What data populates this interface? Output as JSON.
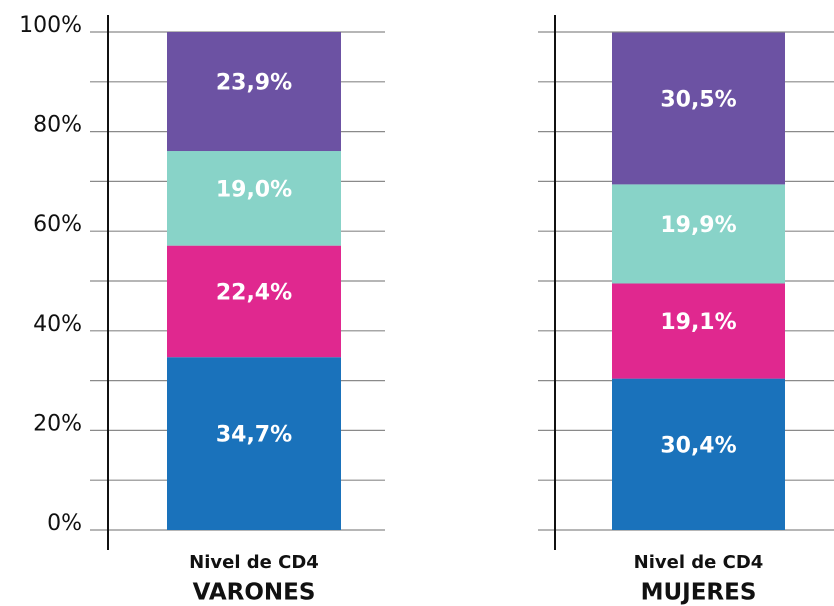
{
  "chart_data": {
    "type": "bar",
    "stacked": true,
    "categories": [
      "VARONES",
      "MUJERES"
    ],
    "category_subtitle": "Nivel de CD4",
    "series": [
      {
        "color": "#1a72bb",
        "values": [
          34.7,
          30.4
        ],
        "value_labels": [
          "34,7%",
          "30,4%"
        ]
      },
      {
        "color": "#e0288f",
        "values": [
          22.4,
          19.1
        ],
        "value_labels": [
          "22,4%",
          "19,1%"
        ]
      },
      {
        "color": "#88d3c8",
        "values": [
          19.0,
          19.9
        ],
        "value_labels": [
          "19,0%",
          "19,9%"
        ]
      },
      {
        "color": "#6c52a3",
        "values": [
          23.9,
          30.5
        ],
        "value_labels": [
          "23,9%",
          "30,5%"
        ]
      }
    ],
    "ylim": [
      0,
      100
    ],
    "yticks": [
      {
        "value": 0,
        "label": "0%"
      },
      {
        "value": 20,
        "label": "20%"
      },
      {
        "value": 40,
        "label": "40%"
      },
      {
        "value": 60,
        "label": "60%"
      },
      {
        "value": 80,
        "label": "80%"
      },
      {
        "value": 100,
        "label": "100%"
      }
    ],
    "minor_yticks": [
      10,
      30,
      50,
      70,
      90
    ],
    "grid": true
  }
}
